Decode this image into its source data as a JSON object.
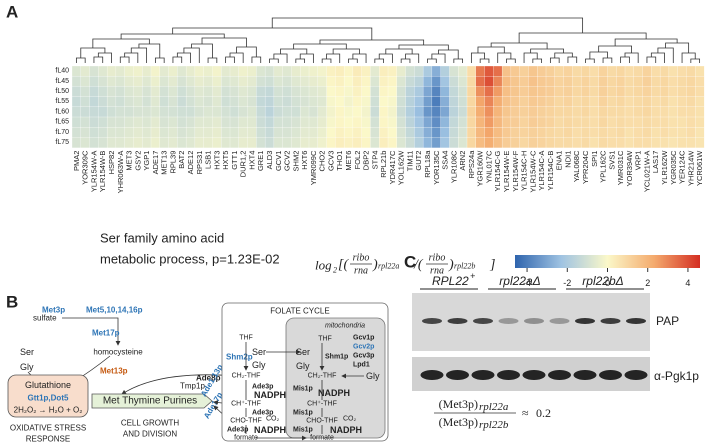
{
  "chart_data": {
    "type": "heatmap",
    "rows": [
      "fL40",
      "fL45",
      "fL50",
      "fL55",
      "fL60",
      "fL65",
      "fL70",
      "fL75"
    ],
    "columns": [
      "PMA2",
      "YOR309C",
      "YLR154W-A",
      "YLR154W-B",
      "HSP82",
      "YHR063W-A",
      "MET3",
      "GSY2",
      "YGP1",
      "ADE17",
      "MET13",
      "RPL39",
      "BAT2",
      "ADE12",
      "RPS31",
      "LSB1",
      "HXT3",
      "HXT5",
      "GTT1",
      "DUR1,2",
      "HXT4",
      "GRE1",
      "ALD3",
      "GCV1",
      "GCV2",
      "SHM2",
      "HXT6",
      "YMR099C",
      "CHO2",
      "GCV3",
      "THO1",
      "MET6",
      "FOL2",
      "DBP2",
      "STP4",
      "RPL21b",
      "YDR417C",
      "YOL162W",
      "TIM11",
      "GUT2",
      "RPL18a",
      "YOR135C",
      "SSA4",
      "YLR108C",
      "ARN2",
      "RPS24a",
      "YGR160W",
      "YNL017C",
      "YLR154C-G",
      "YLR154W-E",
      "YLR154W-F",
      "YLR154C-H",
      "YLR154W-C",
      "YLR154C-A",
      "YLR154C-B",
      "ENA1",
      "NDI1",
      "YAL068C",
      "YPR204C",
      "SPI1",
      "YPL162C",
      "SVS1",
      "YMR031C",
      "YOR394W",
      "VRP1",
      "YCL021W-A",
      "LAS17",
      "YLR162W",
      "YGR035C",
      "YER124C",
      "YHR214W",
      "YCR061W"
    ],
    "values": [
      [
        -0.8,
        -0.6,
        -0.9,
        -0.7,
        -0.5,
        -0.6,
        -0.4,
        -0.3,
        -0.5,
        -0.2,
        -0.6,
        -0.4,
        -0.7,
        -0.5,
        -0.3,
        -0.4,
        -0.2,
        -0.6,
        -0.5,
        -0.3,
        -0.4,
        -0.8,
        -0.9,
        -0.6,
        -0.7,
        -0.5,
        -0.4,
        -0.3,
        -0.2,
        0.2,
        0.3,
        0.1,
        0.4,
        0.2,
        -0.6,
        0.3,
        0.2,
        -0.5,
        -1.0,
        -1.2,
        -2.0,
        -2.8,
        -1.8,
        -0.9,
        -0.6,
        0.8,
        3.2,
        3.8,
        3.4,
        1.6,
        1.4,
        1.2,
        1.5,
        1.3,
        1.2,
        1.0,
        1.1,
        0.9,
        1.0,
        0.8,
        1.1,
        0.9,
        1.0,
        0.8,
        0.9,
        1.1,
        0.8,
        0.9,
        0.7,
        0.8,
        0.9,
        0.7
      ],
      [
        -1.0,
        -0.8,
        -1.1,
        -0.9,
        -0.7,
        -0.8,
        -0.6,
        -0.5,
        -0.7,
        -0.4,
        -0.8,
        -0.6,
        -0.9,
        -0.7,
        -0.5,
        -0.6,
        -0.4,
        -0.8,
        -0.7,
        -0.5,
        -0.6,
        -1.0,
        -1.1,
        -0.8,
        -0.9,
        -0.7,
        -0.6,
        -0.5,
        -0.4,
        0.1,
        0.2,
        0.0,
        0.3,
        0.1,
        -0.8,
        0.2,
        0.1,
        -0.8,
        -1.3,
        -1.6,
        -2.6,
        -3.4,
        -2.2,
        -1.2,
        -0.8,
        0.9,
        3.4,
        4.0,
        3.0,
        1.8,
        1.5,
        1.3,
        1.6,
        1.4,
        1.3,
        1.1,
        1.2,
        1.0,
        1.1,
        0.9,
        1.2,
        1.0,
        1.1,
        0.9,
        1.0,
        1.2,
        0.9,
        1.0,
        0.8,
        0.9,
        1.0,
        0.8
      ],
      [
        -1.2,
        -1.0,
        -1.3,
        -1.1,
        -0.9,
        -1.0,
        -0.8,
        -0.7,
        -0.9,
        -0.6,
        -1.0,
        -0.8,
        -1.1,
        -0.9,
        -0.7,
        -0.8,
        -0.6,
        -1.0,
        -0.9,
        -0.7,
        -0.8,
        -1.3,
        -1.4,
        -1.0,
        -1.1,
        -0.9,
        -0.8,
        -0.7,
        -0.6,
        0.0,
        0.1,
        -0.1,
        0.2,
        0.0,
        -1.0,
        0.1,
        0.0,
        -1.0,
        -1.6,
        -2.0,
        -3.0,
        -3.8,
        -2.6,
        -1.4,
        -1.0,
        1.0,
        2.8,
        3.4,
        2.6,
        1.7,
        1.5,
        1.3,
        1.5,
        1.4,
        1.3,
        1.1,
        1.2,
        1.0,
        1.1,
        0.9,
        1.2,
        1.0,
        1.1,
        0.9,
        1.0,
        1.1,
        0.9,
        1.0,
        0.8,
        0.9,
        1.0,
        0.8
      ],
      [
        -1.3,
        -1.1,
        -1.4,
        -1.2,
        -1.0,
        -1.1,
        -0.9,
        -0.8,
        -1.0,
        -0.7,
        -1.1,
        -0.9,
        -1.2,
        -1.0,
        -0.8,
        -0.9,
        -0.7,
        -1.1,
        -1.0,
        -0.8,
        -0.9,
        -1.4,
        -1.5,
        -1.1,
        -1.2,
        -1.0,
        -0.9,
        -0.8,
        -0.7,
        -0.1,
        0.0,
        -0.2,
        0.1,
        -0.1,
        -1.1,
        0.0,
        -0.1,
        -1.1,
        -1.7,
        -2.2,
        -3.2,
        -4.0,
        -2.8,
        -1.5,
        -1.1,
        1.0,
        2.4,
        3.0,
        2.2,
        1.6,
        1.4,
        1.2,
        1.4,
        1.3,
        1.2,
        1.0,
        1.1,
        0.9,
        1.0,
        0.8,
        1.1,
        0.9,
        1.0,
        0.8,
        0.9,
        1.0,
        0.8,
        0.9,
        0.7,
        0.8,
        0.9,
        0.7
      ],
      [
        -1.2,
        -1.2,
        -1.3,
        -1.3,
        -1.1,
        -1.0,
        -1.0,
        -0.9,
        -0.9,
        -0.8,
        -1.0,
        -1.0,
        -1.1,
        -1.1,
        -0.9,
        -0.8,
        -0.8,
        -1.0,
        -1.1,
        -0.9,
        -0.8,
        -1.3,
        -1.6,
        -1.2,
        -1.1,
        -1.1,
        -0.8,
        -0.9,
        -0.6,
        -0.2,
        0.1,
        -0.1,
        0.0,
        -0.2,
        -1.2,
        0.1,
        -0.2,
        -1.2,
        -1.8,
        -2.4,
        -3.4,
        -3.8,
        -3.0,
        -1.6,
        -1.2,
        1.1,
        2.2,
        2.8,
        2.0,
        1.5,
        1.3,
        1.2,
        1.3,
        1.2,
        1.1,
        1.0,
        1.0,
        0.9,
        1.0,
        0.8,
        1.0,
        0.9,
        0.9,
        0.8,
        0.9,
        1.0,
        0.8,
        0.8,
        0.7,
        0.8,
        0.8,
        0.7
      ],
      [
        -1.1,
        -1.0,
        -1.2,
        -1.1,
        -0.9,
        -0.9,
        -0.8,
        -0.7,
        -0.8,
        -0.6,
        -0.9,
        -0.8,
        -1.0,
        -0.9,
        -0.7,
        -0.7,
        -0.6,
        -0.9,
        -0.9,
        -0.7,
        -0.7,
        -1.2,
        -1.4,
        -1.0,
        -1.0,
        -0.9,
        -0.7,
        -0.7,
        -0.5,
        -0.1,
        0.1,
        0.0,
        0.1,
        -0.1,
        -1.0,
        0.1,
        -0.1,
        -1.0,
        -1.6,
        -2.2,
        -3.0,
        -3.6,
        -2.6,
        -1.4,
        -1.0,
        1.0,
        2.0,
        2.6,
        1.9,
        1.4,
        1.3,
        1.1,
        1.3,
        1.2,
        1.1,
        0.9,
        1.0,
        0.9,
        0.9,
        0.8,
        1.0,
        0.8,
        0.9,
        0.8,
        0.8,
        0.9,
        0.8,
        0.8,
        0.7,
        0.7,
        0.8,
        0.7
      ],
      [
        -1.0,
        -0.9,
        -1.1,
        -1.0,
        -0.8,
        -0.8,
        -0.7,
        -0.6,
        -0.7,
        -0.5,
        -0.8,
        -0.7,
        -0.9,
        -0.8,
        -0.6,
        -0.6,
        -0.5,
        -0.8,
        -0.8,
        -0.6,
        -0.6,
        -1.1,
        -1.3,
        -0.9,
        -0.9,
        -0.8,
        -0.6,
        -0.6,
        -0.4,
        0.0,
        0.2,
        0.1,
        0.2,
        0.0,
        -0.9,
        0.2,
        0.0,
        -0.9,
        -1.4,
        -2.0,
        -2.8,
        -3.4,
        -2.4,
        -1.3,
        -0.9,
        1.0,
        1.9,
        2.4,
        1.8,
        1.4,
        1.2,
        1.1,
        1.2,
        1.1,
        1.0,
        0.9,
        1.0,
        0.8,
        0.9,
        0.8,
        0.9,
        0.8,
        0.9,
        0.7,
        0.8,
        0.9,
        0.7,
        0.8,
        0.7,
        0.7,
        0.8,
        0.6
      ],
      [
        -0.9,
        -0.8,
        -1.0,
        -0.9,
        -0.7,
        -0.7,
        -0.6,
        -0.5,
        -0.6,
        -0.4,
        -0.7,
        -0.6,
        -0.8,
        -0.7,
        -0.5,
        -0.5,
        -0.4,
        -0.7,
        -0.7,
        -0.5,
        -0.5,
        -1.0,
        -1.2,
        -0.8,
        -0.8,
        -0.7,
        -0.5,
        -0.5,
        -0.3,
        0.1,
        0.3,
        0.2,
        0.3,
        0.1,
        -0.8,
        0.3,
        0.1,
        -0.8,
        -1.2,
        -1.8,
        -2.6,
        -3.2,
        -2.2,
        -1.2,
        -0.8,
        1.0,
        1.8,
        2.2,
        1.7,
        1.3,
        1.2,
        1.0,
        1.2,
        1.1,
        1.0,
        0.9,
        0.9,
        0.8,
        0.9,
        0.7,
        0.9,
        0.8,
        0.8,
        0.7,
        0.8,
        0.8,
        0.7,
        0.7,
        0.6,
        0.7,
        0.7,
        0.6
      ]
    ],
    "clim": [
      -4.6,
      4.6
    ],
    "colorbar_ticks": [
      -4,
      -2,
      0,
      2,
      4
    ],
    "colors": [
      "#2f64ad",
      "#9fc3e2",
      "#fbf8c9",
      "#f4ab6e",
      "#d42e22"
    ]
  },
  "panel_a": {
    "label": "A",
    "annotation": [
      "Ser family amino acid",
      "metabolic process, p=1.23E-02"
    ],
    "formula": {
      "log": "log",
      "base": "2",
      "open": "[(",
      "ribo": "ribo",
      "rna": "rna",
      "close": ")",
      "gene_a": "rpl22a",
      "slash": "/(",
      "gene_b": "rpl22b",
      "end": "]"
    }
  },
  "diagram": {
    "label": "B",
    "sulfate": "sulfate",
    "met3p": "Met3p",
    "met5": "Met5,10,14,16p",
    "met17p": "Met17p",
    "homocysteine": "homocysteine",
    "ser": "Ser",
    "gly": "Gly",
    "met13p": "Met13p",
    "tmp1p": "Tmp1p",
    "glutathione": "Glutathione",
    "gtt1p": "Gtt1p,Dot5",
    "h2o2": "2H₂O₂ → H₂O + O₂",
    "oxidative": [
      "OXIDATIVE STRESS",
      "RESPONSE"
    ],
    "products": "Met  Thymine  Purines",
    "growth": [
      "CELL GROWTH",
      "AND DIVISION"
    ],
    "ade8p": "Ade8p",
    "ade113p": "Ade1,13p",
    "ade17p": "Ade17p",
    "folate_title": "FOLATE CYCLE",
    "mito": "mitochondria",
    "thf": "THF",
    "shm2p": "Shm2p",
    "shm1p": "Shm1p",
    "ch2thf": "CH₂-THF",
    "nadph": "NADPH",
    "ade3p": "Ade3p",
    "chthf": "CH⁺-THF",
    "chothf": "CHO-THF",
    "co2": "CO₂",
    "formate": "formate",
    "mis1p": "Mis1p",
    "gcv": [
      "Gcv1p",
      "Gcv2p",
      "Gcv3p",
      "Lpd1"
    ]
  },
  "blot": {
    "label": "C",
    "groups": [
      "RPL22",
      "rpl22aΔ",
      "rpl22bΔ"
    ],
    "group_sup": "+",
    "bands": [
      "PAP",
      "α-Pgk1p"
    ],
    "formula": {
      "num": "(Met3p)",
      "gene_a": "rpl22a",
      "den": "(Met3p)",
      "gene_b": "rpl22b",
      "approx": "≈",
      "ratio": 0.2
    }
  }
}
